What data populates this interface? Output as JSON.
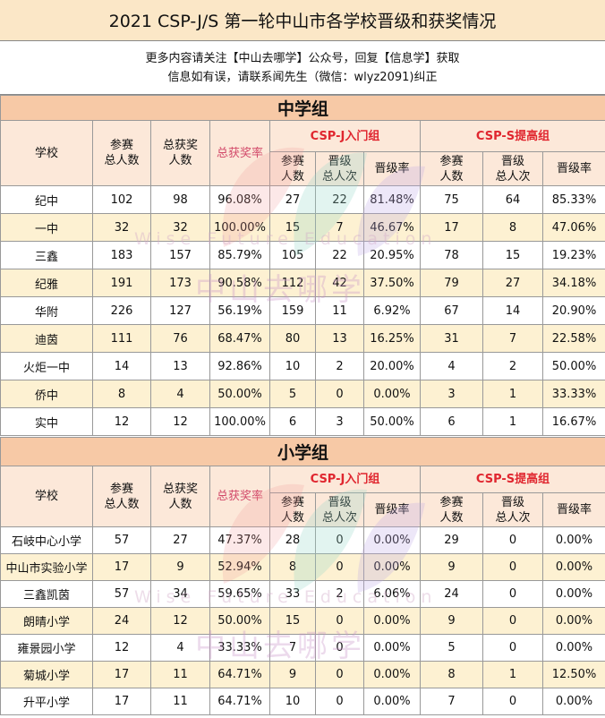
{
  "title": "2021 CSP-J/S 第一轮中山市各学校晋级和获奖情况",
  "notice": {
    "line1": "更多内容请关注【中山去哪学】公众号，回复【信息学】获取",
    "line2": "信息如有误，请联系闻先生（微信：wlyz2091)纠正"
  },
  "watermark": {
    "cn": "中山去哪学",
    "en": "Wise Future Education"
  },
  "headers": {
    "school": "学校",
    "total_participants": "参赛\n总人数",
    "total_awards": "总获奖\n人数",
    "award_rate": "总获奖率",
    "csp_j": "CSP-J入门组",
    "csp_s": "CSP-S提高组",
    "participants": "参赛\n人数",
    "advanced": "晋级\n总人次",
    "advance_rate": "晋级率"
  },
  "middle": {
    "name": "中学组",
    "rows": [
      [
        "纪中",
        "102",
        "98",
        "96.08%",
        "27",
        "22",
        "81.48%",
        "75",
        "64",
        "85.33%"
      ],
      [
        "一中",
        "32",
        "32",
        "100.00%",
        "15",
        "7",
        "46.67%",
        "17",
        "8",
        "47.06%"
      ],
      [
        "三鑫",
        "183",
        "157",
        "85.79%",
        "105",
        "22",
        "20.95%",
        "78",
        "15",
        "19.23%"
      ],
      [
        "纪雅",
        "191",
        "173",
        "90.58%",
        "112",
        "42",
        "37.50%",
        "79",
        "27",
        "34.18%"
      ],
      [
        "华附",
        "226",
        "127",
        "56.19%",
        "159",
        "11",
        "6.92%",
        "67",
        "14",
        "20.90%"
      ],
      [
        "迪茵",
        "111",
        "76",
        "68.47%",
        "80",
        "13",
        "16.25%",
        "31",
        "7",
        "22.58%"
      ],
      [
        "火炬一中",
        "14",
        "13",
        "92.86%",
        "10",
        "2",
        "20.00%",
        "4",
        "2",
        "50.00%"
      ],
      [
        "侨中",
        "8",
        "4",
        "50.00%",
        "5",
        "0",
        "0.00%",
        "3",
        "1",
        "33.33%"
      ],
      [
        "实中",
        "12",
        "12",
        "100.00%",
        "6",
        "3",
        "50.00%",
        "6",
        "1",
        "16.67%"
      ]
    ]
  },
  "primary": {
    "name": "小学组",
    "rows": [
      [
        "石岐中心小学",
        "57",
        "27",
        "47.37%",
        "28",
        "0",
        "0.00%",
        "29",
        "0",
        "0.00%"
      ],
      [
        "中山市实验小学",
        "17",
        "9",
        "52.94%",
        "8",
        "0",
        "0.00%",
        "9",
        "0",
        "0.00%"
      ],
      [
        "三鑫凯茵",
        "57",
        "34",
        "59.65%",
        "33",
        "2",
        "6.06%",
        "24",
        "0",
        "0.00%"
      ],
      [
        "朗晴小学",
        "24",
        "12",
        "50.00%",
        "15",
        "0",
        "0.00%",
        "9",
        "0",
        "0.00%"
      ],
      [
        "雍景园小学",
        "12",
        "4",
        "33.33%",
        "7",
        "0",
        "0.00%",
        "5",
        "0",
        "0.00%"
      ],
      [
        "菊城小学",
        "17",
        "11",
        "64.71%",
        "9",
        "0",
        "0.00%",
        "8",
        "1",
        "12.50%"
      ],
      [
        "升平小学",
        "17",
        "11",
        "64.71%",
        "10",
        "0",
        "0.00%",
        "7",
        "0",
        "0.00%"
      ]
    ]
  }
}
